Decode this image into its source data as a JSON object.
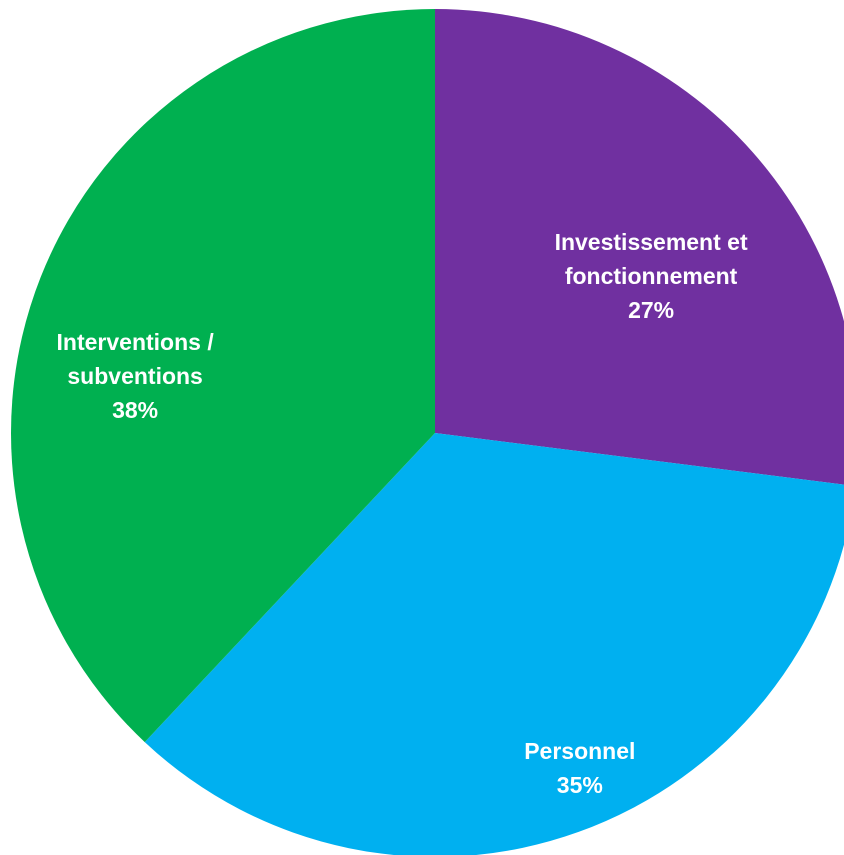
{
  "chart_data": {
    "type": "pie",
    "categories": [
      "Investissement et fonctionnement",
      "Personnel",
      "Interventions / subventions"
    ],
    "values": [
      27,
      35,
      38
    ],
    "value_labels": [
      "27%",
      "35%",
      "38%"
    ],
    "colors": [
      "#7030a0",
      "#00b0f0",
      "#00b050"
    ]
  }
}
